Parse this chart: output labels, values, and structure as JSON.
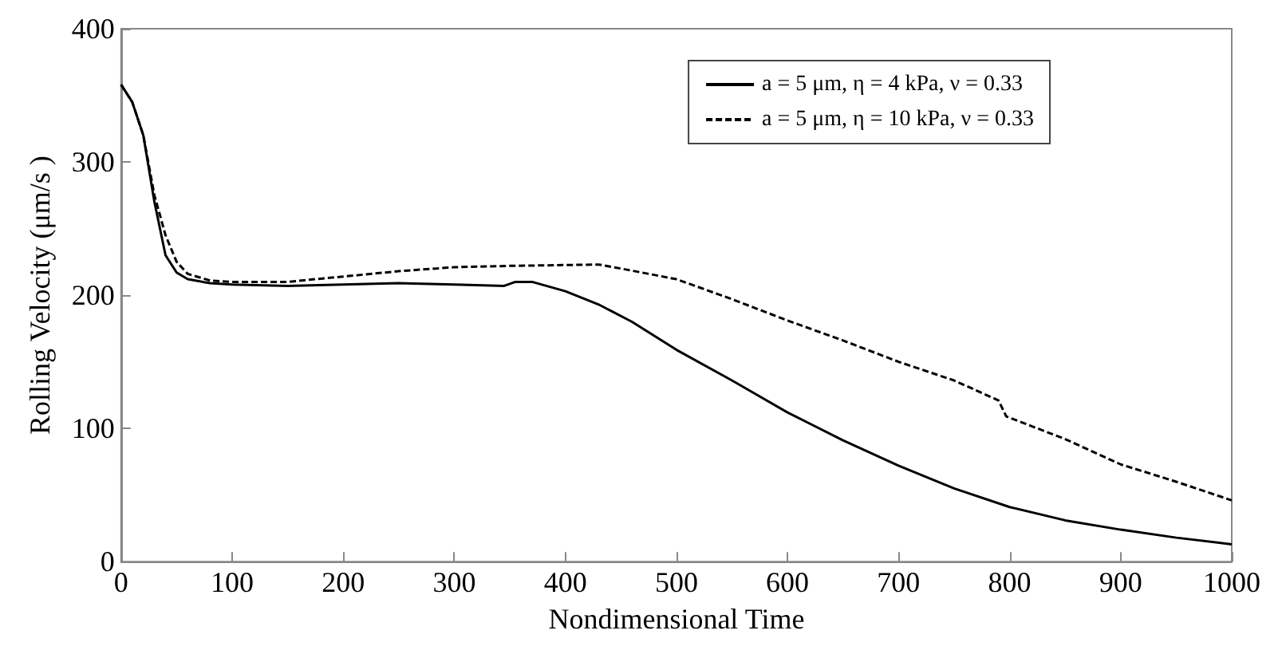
{
  "chart_data": {
    "type": "line",
    "xlabel": "Nondimensional Time",
    "ylabel": "Rolling Velocity (μm/s )",
    "xlim": [
      0,
      1000
    ],
    "xticks": [
      0,
      100,
      200,
      300,
      400,
      500,
      600,
      700,
      800,
      900,
      1000
    ],
    "ylim": [
      0,
      400
    ],
    "yticks": [
      0,
      100,
      200,
      300,
      400
    ],
    "grid": false,
    "legend": "top right",
    "marker": "none",
    "series": [
      {
        "name": "a = 5 μm, η = 4 kPa, ν = 0.33",
        "color": "#000000",
        "line_style": "solid",
        "x": [
          0,
          10,
          20,
          30,
          40,
          50,
          60,
          80,
          100,
          150,
          200,
          250,
          300,
          345,
          355,
          370,
          400,
          430,
          460,
          500,
          550,
          600,
          650,
          700,
          750,
          800,
          850,
          900,
          950,
          1000
        ],
        "values": [
          358,
          345,
          320,
          270,
          230,
          217,
          212,
          209,
          208,
          207,
          208,
          209,
          208,
          207,
          210,
          210,
          203,
          193,
          180,
          159,
          136,
          112,
          91,
          72,
          55,
          41,
          31,
          24,
          18,
          13
        ]
      },
      {
        "name": "a = 5 μm, η = 10 kPa, ν = 0.33",
        "color": "#000000",
        "line_style": "dashed",
        "x": [
          0,
          10,
          20,
          30,
          40,
          50,
          60,
          80,
          100,
          150,
          200,
          250,
          300,
          350,
          430,
          450,
          500,
          550,
          600,
          650,
          700,
          750,
          790,
          797,
          850,
          900,
          950,
          1000
        ],
        "values": [
          358,
          345,
          320,
          275,
          245,
          225,
          216,
          211,
          210,
          210,
          214,
          218,
          221,
          222,
          223,
          220,
          212,
          197,
          181,
          166,
          150,
          136,
          121,
          109,
          92,
          73,
          60,
          46
        ]
      }
    ]
  }
}
